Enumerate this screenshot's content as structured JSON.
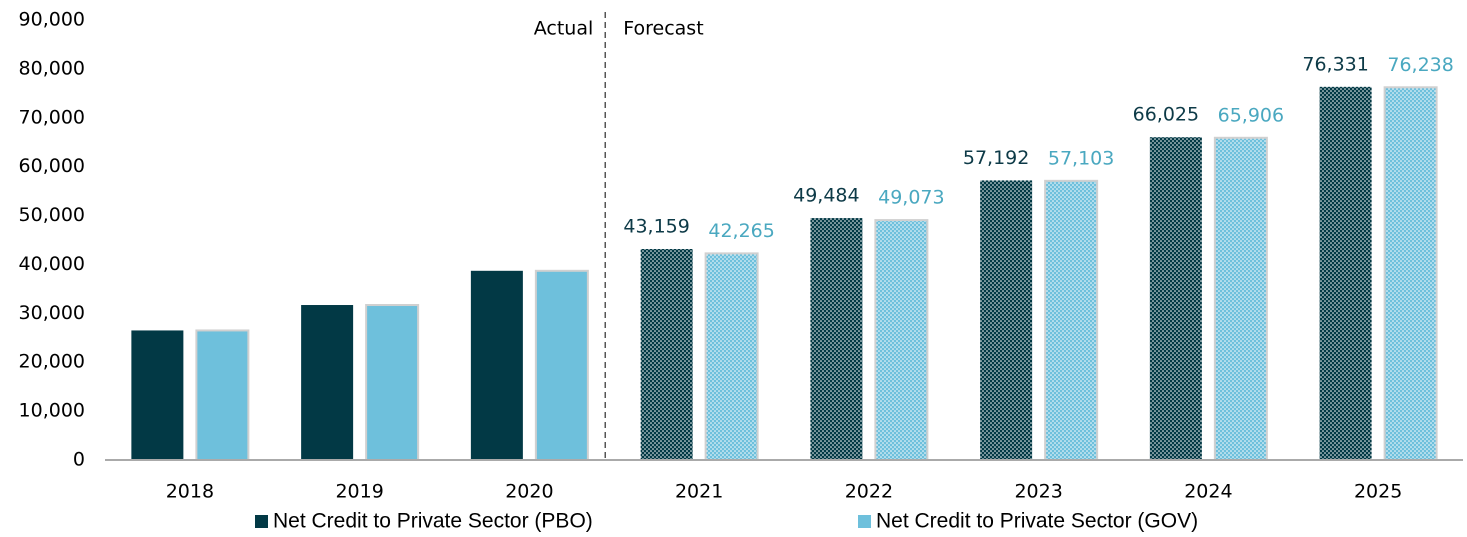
{
  "chart_data": {
    "type": "bar",
    "categories": [
      "2018",
      "2019",
      "2020",
      "2021",
      "2022",
      "2023",
      "2024",
      "2025"
    ],
    "series": [
      {
        "name": "Net Credit to Private Sector (PBO)",
        "color": "#023945",
        "label_color": "#0d3a47",
        "values": [
          26500,
          31700,
          38700,
          43159,
          49484,
          57192,
          66025,
          76331
        ],
        "value_labels": [
          null,
          null,
          null,
          "43,159",
          "49,484",
          "57,192",
          "66,025",
          "76,331"
        ]
      },
      {
        "name": "Net Credit to Private Sector (GOV)",
        "color": "#6ec0dc",
        "label_color": "#4aa8c0",
        "values": [
          26500,
          31700,
          38700,
          42265,
          49073,
          57103,
          65906,
          76238
        ],
        "value_labels": [
          null,
          null,
          null,
          "42,265",
          "49,073",
          "57,103",
          "65,906",
          "76,238"
        ]
      }
    ],
    "annotations": [
      "Actual",
      "Forecast"
    ],
    "ylim": [
      0,
      90000
    ],
    "yticks": [
      0,
      {
        "value": 10000,
        "label": "10,000"
      },
      {
        "value": 20000,
        "label": "20,000"
      },
      {
        "value": 30000,
        "label": "30,000"
      },
      {
        "value": 40000,
        "label": "40,000"
      },
      {
        "value": 50000,
        "label": "50,000"
      },
      {
        "value": 60000,
        "label": "60,000"
      },
      {
        "value": 70000,
        "label": "70,000"
      },
      {
        "value": 80000,
        "label": "80,000"
      },
      {
        "value": 90000,
        "label": "90,000"
      }
    ],
    "grid": false,
    "legend": "bottom"
  }
}
